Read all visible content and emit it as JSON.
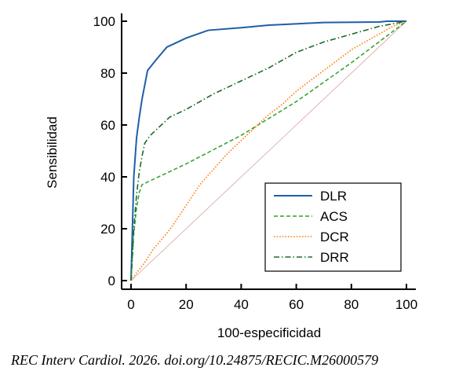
{
  "citation": "REC Interv Cardiol. 2026. doi.org/10.24875/RECIC.M26000579",
  "chart_data": {
    "type": "line",
    "title": "",
    "xlabel": "100-especificidad",
    "ylabel": "Sensibilidad",
    "xlim": [
      0,
      100
    ],
    "ylim": [
      0,
      100
    ],
    "xticks": [
      "0",
      "20",
      "40",
      "60",
      "80",
      "100"
    ],
    "yticks": [
      "0",
      "20",
      "40",
      "60",
      "80",
      "100"
    ],
    "grid": false,
    "legend_position": "bottom-right",
    "reference_line": {
      "points": [
        [
          0,
          0
        ],
        [
          100,
          100
        ]
      ],
      "color": "#d9a0a0"
    },
    "series": [
      {
        "name": "DLR",
        "color": "#1f5fa8",
        "dash": "solid",
        "points": [
          [
            0,
            0
          ],
          [
            0.5,
            20
          ],
          [
            1,
            40
          ],
          [
            2,
            55
          ],
          [
            3,
            63
          ],
          [
            4,
            70
          ],
          [
            6,
            81
          ],
          [
            9,
            85
          ],
          [
            13,
            90
          ],
          [
            16,
            91.5
          ],
          [
            20,
            93.5
          ],
          [
            28,
            96.5
          ],
          [
            40,
            97.5
          ],
          [
            50,
            98.5
          ],
          [
            70,
            99.5
          ],
          [
            90,
            99.7
          ],
          [
            93,
            100
          ],
          [
            100,
            100
          ]
        ]
      },
      {
        "name": "ACS",
        "color": "#2ca02c",
        "dash": "dashed",
        "points": [
          [
            0,
            0
          ],
          [
            1,
            18
          ],
          [
            2,
            28
          ],
          [
            3,
            34
          ],
          [
            4,
            37
          ],
          [
            6,
            38
          ],
          [
            20,
            45
          ],
          [
            40,
            56
          ],
          [
            60,
            69
          ],
          [
            80,
            84
          ],
          [
            100,
            100
          ]
        ]
      },
      {
        "name": "DCR",
        "color": "#ff7f0e",
        "dash": "dotted",
        "points": [
          [
            0,
            0
          ],
          [
            2,
            3
          ],
          [
            5,
            7
          ],
          [
            8,
            12
          ],
          [
            12,
            17
          ],
          [
            15,
            21
          ],
          [
            20,
            29
          ],
          [
            25,
            37
          ],
          [
            30,
            43
          ],
          [
            35,
            49
          ],
          [
            40,
            54
          ],
          [
            45,
            59
          ],
          [
            50,
            64
          ],
          [
            55,
            68
          ],
          [
            60,
            73
          ],
          [
            65,
            77
          ],
          [
            70,
            81
          ],
          [
            75,
            85
          ],
          [
            80,
            89
          ],
          [
            85,
            92
          ],
          [
            90,
            95
          ],
          [
            95,
            98
          ],
          [
            100,
            100
          ]
        ]
      },
      {
        "name": "DRR",
        "color": "#1a6b2a",
        "dash": "dashdot",
        "points": [
          [
            0,
            0
          ],
          [
            1,
            20
          ],
          [
            2,
            33
          ],
          [
            3,
            42
          ],
          [
            4,
            48
          ],
          [
            5,
            53
          ],
          [
            7,
            56
          ],
          [
            10,
            59
          ],
          [
            14,
            63
          ],
          [
            20,
            66
          ],
          [
            30,
            72
          ],
          [
            40,
            77
          ],
          [
            50,
            82
          ],
          [
            60,
            88
          ],
          [
            70,
            92
          ],
          [
            80,
            95
          ],
          [
            90,
            98
          ],
          [
            100,
            100
          ]
        ]
      }
    ]
  }
}
